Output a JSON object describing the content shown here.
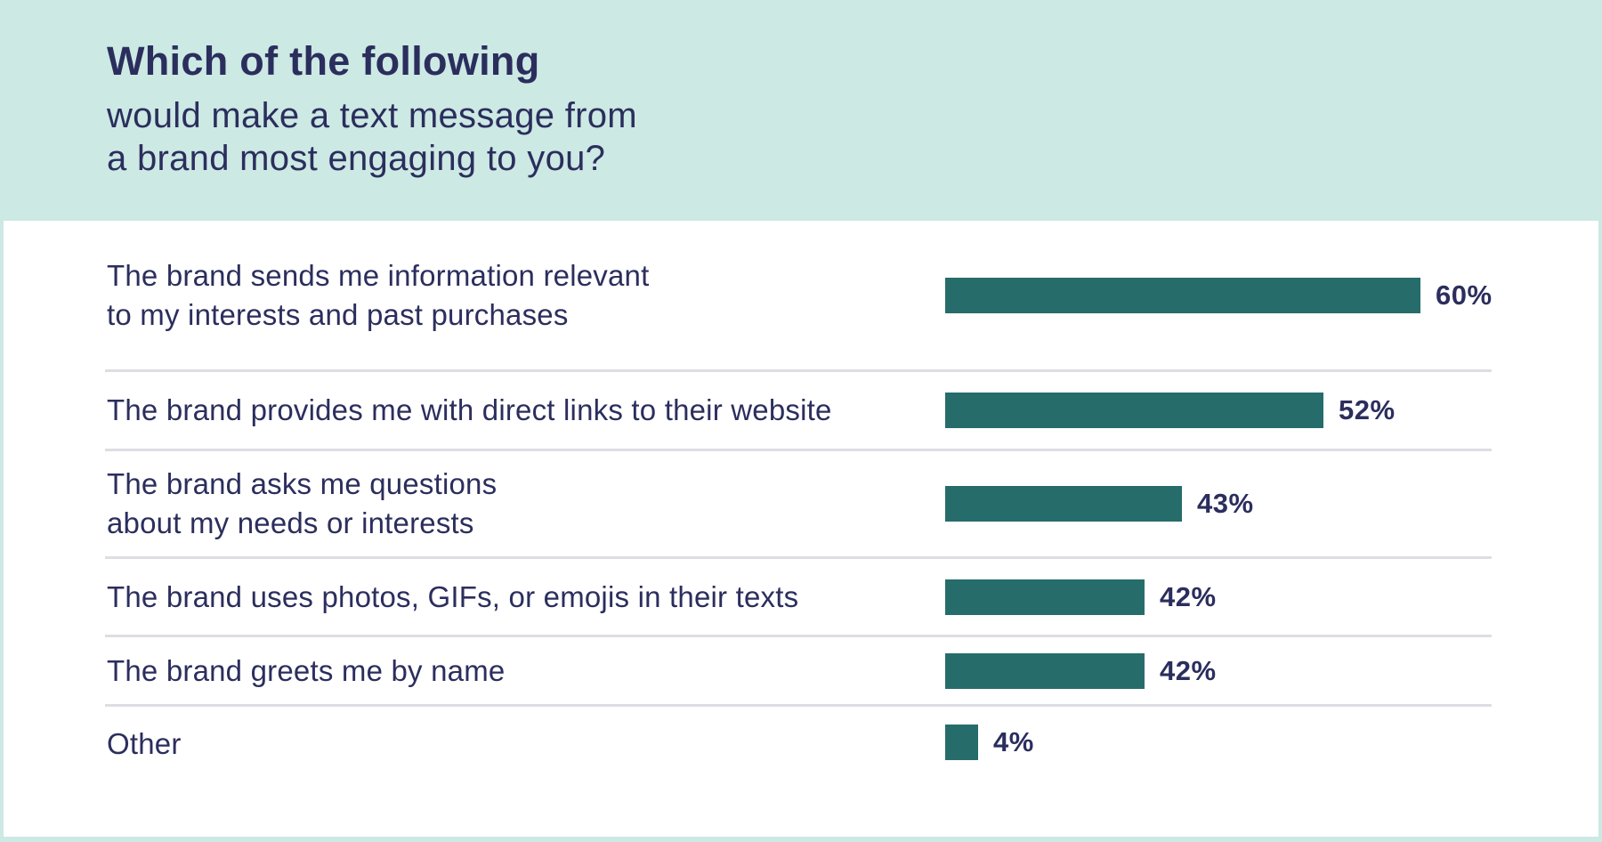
{
  "header": {
    "title": "Which of the following",
    "subtitle": "would make a text message from\na brand most engaging to you?"
  },
  "chart_data": {
    "type": "bar",
    "orientation": "horizontal",
    "title": "Which of the following would make a text message from a brand most engaging to you?",
    "categories": [
      "The brand sends me information relevant to my interests and past purchases",
      "The brand provides me with direct links to their website",
      "The brand asks me questions about my needs or interests",
      "The brand uses photos, GIFs, or emojis in their texts",
      "The brand greets me by name",
      "Other"
    ],
    "values": [
      60,
      52,
      43,
      42,
      42,
      4
    ],
    "value_suffix": "%",
    "xlabel": "",
    "ylabel": "",
    "xlim": [
      0,
      100
    ],
    "grid": false,
    "legend": false,
    "bar_color": "#266c6a",
    "text_color": "#2b2e5d",
    "header_background": "#cce9e3",
    "panel_background": "#ffffff",
    "divider_color": "#dcdee3"
  },
  "rows": [
    {
      "label": "The brand sends me information relevant\nto my interests and past purchases",
      "value": 60,
      "value_label": "60%"
    },
    {
      "label": "The brand provides me with direct links to their website",
      "value": 52,
      "value_label": "52%"
    },
    {
      "label": "The brand asks me questions\nabout my needs or interests",
      "value": 43,
      "value_label": "43%"
    },
    {
      "label": "The brand uses photos, GIFs, or emojis in their texts",
      "value": 42,
      "value_label": "42%"
    },
    {
      "label": "The brand greets me by name",
      "value": 42,
      "value_label": "42%"
    },
    {
      "label": "Other",
      "value": 4,
      "value_label": "4%"
    }
  ]
}
